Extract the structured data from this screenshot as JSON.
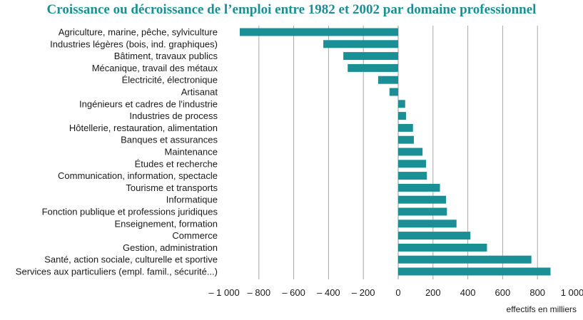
{
  "chart_data": {
    "type": "bar",
    "orientation": "horizontal",
    "title": "Croissance ou décroissance de l’emploi entre 1982 et 2002 par domaine professionnel",
    "xlabel": "effectifs en milliers",
    "xlim": [
      -1000,
      1000
    ],
    "grid": true,
    "bar_color": "#1a8f95",
    "title_color": "#1a8f95",
    "x_ticks": [
      -1000,
      -800,
      -600,
      -400,
      -200,
      0,
      200,
      400,
      600,
      800,
      1000
    ],
    "x_tick_labels": [
      "– 1 000",
      "– 800",
      "– 600",
      "– 400",
      "– 200",
      "0",
      "200",
      "400",
      "600",
      "800",
      "1 000"
    ],
    "categories": [
      "Agriculture, marine, pêche, sylviculture",
      "Industries légères (bois, ind. graphiques)",
      "Bâtiment, travaux publics",
      "Mécanique, travail des métaux",
      "Électricité, électronique",
      "Artisanat",
      "Ingénieurs et cadres de l'industrie",
      "Industries de process",
      "Hôtellerie, restauration, alimentation",
      "Banques et assurances",
      "Maintenance",
      "Études et recherche",
      "Communication, information, spectacle",
      "Tourisme et transports",
      "Informatique",
      "Fonction publique et professions juridiques",
      "Enseignement, formation",
      "Commerce",
      "Gestion, administration",
      "Santé, action sociale, culturelle et sportive",
      "Services aux particuliers (empl. famil., sécurité...)"
    ],
    "values": [
      -910,
      -430,
      -315,
      -290,
      -115,
      -50,
      40,
      45,
      85,
      90,
      140,
      160,
      165,
      240,
      275,
      280,
      335,
      415,
      510,
      765,
      875
    ]
  }
}
